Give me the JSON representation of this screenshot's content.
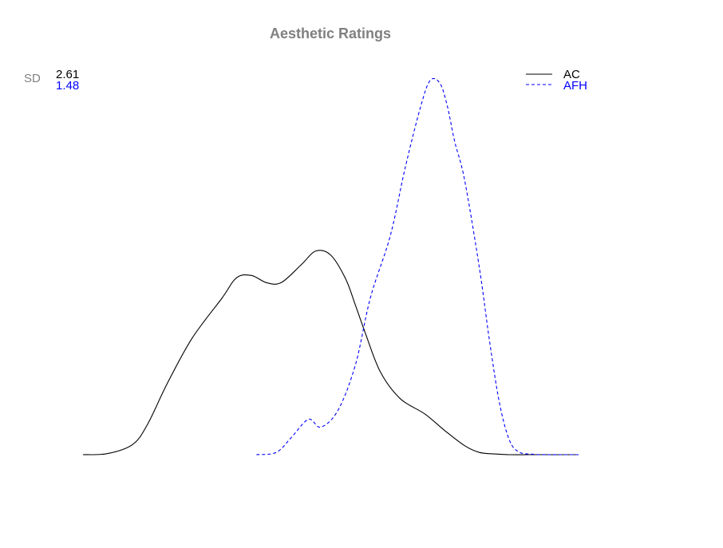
{
  "chart_data": {
    "type": "line",
    "title": "Aesthetic Ratings",
    "xlabel": "",
    "ylabel": "",
    "grid": false,
    "legend_placement": "top-right",
    "sd_label": "SD",
    "xlim": [
      0,
      1
    ],
    "ylim": [
      0,
      1
    ],
    "series": [
      {
        "name": "AC",
        "sd": "2.61",
        "color": "#000000",
        "style": "solid",
        "x": [
          0.0,
          0.05,
          0.1,
          0.13,
          0.17,
          0.22,
          0.28,
          0.31,
          0.34,
          0.37,
          0.4,
          0.44,
          0.47,
          0.5,
          0.53,
          0.55,
          0.57,
          0.6,
          0.64,
          0.69,
          0.73,
          0.77,
          0.8,
          0.83,
          0.86,
          0.9,
          0.94,
          1.0
        ],
        "y": [
          0.0,
          0.003,
          0.027,
          0.08,
          0.189,
          0.309,
          0.415,
          0.47,
          0.476,
          0.457,
          0.457,
          0.504,
          0.541,
          0.53,
          0.467,
          0.396,
          0.322,
          0.22,
          0.149,
          0.108,
          0.064,
          0.024,
          0.006,
          0.002,
          0.0,
          0.0,
          0.0,
          0.0
        ]
      },
      {
        "name": "AFH",
        "sd": "1.48",
        "color": "#0000ff",
        "style": "dashed",
        "x": [
          0.35,
          0.39,
          0.42,
          0.455,
          0.48,
          0.515,
          0.55,
          0.58,
          0.62,
          0.65,
          0.68,
          0.7,
          0.72,
          0.735,
          0.75,
          0.77,
          0.8,
          0.82,
          0.84,
          0.86,
          0.88,
          0.91,
          0.94,
          0.97,
          1.0
        ],
        "y": [
          0.0,
          0.006,
          0.045,
          0.094,
          0.073,
          0.119,
          0.24,
          0.417,
          0.581,
          0.761,
          0.918,
          0.993,
          0.987,
          0.927,
          0.832,
          0.73,
          0.495,
          0.305,
          0.14,
          0.04,
          0.007,
          0.001,
          0.0,
          0.0,
          0.0
        ]
      }
    ]
  }
}
